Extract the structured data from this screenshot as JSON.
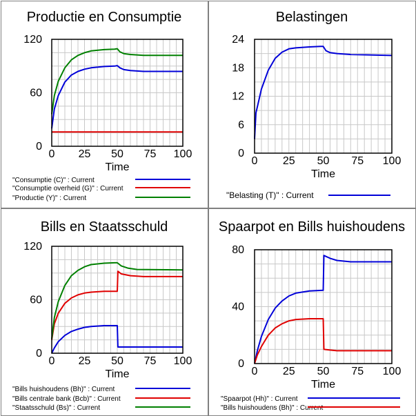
{
  "colors": {
    "blue": "#0000d8",
    "red": "#e00000",
    "green": "#008000",
    "panel_border": "#808080",
    "plot_border": "#000000",
    "grid": "#c8c8c8"
  },
  "chart_data": [
    {
      "type": "line",
      "title": "Productie en Consumptie",
      "xlabel": "Time",
      "xlim": [
        0,
        100
      ],
      "ylim": [
        0,
        120
      ],
      "xticks": [
        0,
        25,
        50,
        75,
        100
      ],
      "yticks": [
        0,
        60,
        120
      ],
      "legend_placement": "bottom",
      "series": [
        {
          "name": "\"Consumptie (C)\" : Current",
          "color": "#0000d8",
          "points": [
            [
              0,
              20
            ],
            [
              2,
              42
            ],
            [
              5,
              57
            ],
            [
              10,
              72
            ],
            [
              15,
              80
            ],
            [
              20,
              84
            ],
            [
              25,
              86.5
            ],
            [
              30,
              88
            ],
            [
              40,
              89.5
            ],
            [
              48,
              90
            ],
            [
              50,
              90.5
            ],
            [
              52,
              88
            ],
            [
              55,
              86
            ],
            [
              60,
              85
            ],
            [
              70,
              84
            ],
            [
              100,
              84
            ]
          ]
        },
        {
          "name": "\"Consumptie overheid (G)\" : Current",
          "color": "#e00000",
          "points": [
            [
              0,
              16
            ],
            [
              100,
              16
            ]
          ]
        },
        {
          "name": "\"Productie (Y)\" : Current",
          "color": "#008000",
          "points": [
            [
              0,
              36
            ],
            [
              2,
              57
            ],
            [
              5,
              73
            ],
            [
              10,
              88
            ],
            [
              15,
              97
            ],
            [
              20,
              102
            ],
            [
              25,
              105
            ],
            [
              30,
              107
            ],
            [
              40,
              108.5
            ],
            [
              48,
              109
            ],
            [
              50,
              109.5
            ],
            [
              52,
              106
            ],
            [
              55,
              104
            ],
            [
              60,
              103
            ],
            [
              70,
              102
            ],
            [
              100,
              102
            ]
          ]
        }
      ]
    },
    {
      "type": "line",
      "title": "Belastingen",
      "xlabel": "Time",
      "xlim": [
        0,
        100
      ],
      "ylim": [
        0,
        24
      ],
      "xticks": [
        0,
        25,
        50,
        75,
        100
      ],
      "yticks": [
        0,
        6,
        12,
        18,
        24
      ],
      "legend_placement": "bottom",
      "series": [
        {
          "name": "\"Belasting (T)\" : Current",
          "color": "#0000d8",
          "points": [
            [
              0,
              3
            ],
            [
              1,
              8.5
            ],
            [
              3,
              11
            ],
            [
              5,
              13.5
            ],
            [
              10,
              17.5
            ],
            [
              15,
              20
            ],
            [
              20,
              21.3
            ],
            [
              25,
              22
            ],
            [
              30,
              22.2
            ],
            [
              40,
              22.4
            ],
            [
              48,
              22.5
            ],
            [
              50,
              22.5
            ],
            [
              52,
              21.6
            ],
            [
              55,
              21.2
            ],
            [
              60,
              21
            ],
            [
              70,
              20.8
            ],
            [
              100,
              20.6
            ]
          ]
        }
      ]
    },
    {
      "type": "line",
      "title": "Bills en Staatsschuld",
      "xlabel": "Time",
      "xlim": [
        0,
        100
      ],
      "ylim": [
        0,
        120
      ],
      "xticks": [
        0,
        25,
        50,
        75,
        100
      ],
      "yticks": [
        0,
        60,
        120
      ],
      "legend_placement": "bottom",
      "series": [
        {
          "name": "\"Bills huishoudens (Bh)\" : Current",
          "color": "#0000d8",
          "points": [
            [
              0,
              0
            ],
            [
              2,
              6
            ],
            [
              5,
              13
            ],
            [
              10,
              20
            ],
            [
              15,
              24.5
            ],
            [
              20,
              27
            ],
            [
              25,
              29
            ],
            [
              30,
              30
            ],
            [
              40,
              31
            ],
            [
              50,
              31
            ],
            [
              50.5,
              7
            ],
            [
              100,
              7
            ]
          ]
        },
        {
          "name": "\"Bills centrale bank (Bcb)\" : Current",
          "color": "#e00000",
          "points": [
            [
              0,
              15
            ],
            [
              2,
              33
            ],
            [
              5,
              45
            ],
            [
              10,
              56
            ],
            [
              15,
              62
            ],
            [
              20,
              65.5
            ],
            [
              25,
              67.5
            ],
            [
              30,
              68.5
            ],
            [
              40,
              69.5
            ],
            [
              50,
              69.5
            ],
            [
              50.5,
              92
            ],
            [
              53,
              89
            ],
            [
              60,
              87
            ],
            [
              70,
              86
            ],
            [
              100,
              86
            ]
          ]
        },
        {
          "name": "\"Staatsschuld (Bs)\" : Current",
          "color": "#008000",
          "points": [
            [
              0,
              16
            ],
            [
              2,
              40
            ],
            [
              5,
              58
            ],
            [
              10,
              76
            ],
            [
              15,
              87
            ],
            [
              20,
              93
            ],
            [
              25,
              97
            ],
            [
              30,
              99.5
            ],
            [
              40,
              101
            ],
            [
              48,
              101.5
            ],
            [
              50,
              101.5
            ],
            [
              53,
              98
            ],
            [
              58,
              95.5
            ],
            [
              65,
              94
            ],
            [
              100,
              93.5
            ]
          ]
        }
      ]
    },
    {
      "type": "line",
      "title": "Spaarpot en Bills huishoudens",
      "xlabel": "Time",
      "xlim": [
        0,
        100
      ],
      "ylim": [
        0,
        80
      ],
      "xticks": [
        0,
        25,
        50,
        75,
        100
      ],
      "yticks": [
        0,
        40,
        80
      ],
      "legend_placement": "bottom",
      "series": [
        {
          "name": "\"Spaarpot (Hh)\" : Current",
          "color": "#0000d8",
          "points": [
            [
              0,
              0
            ],
            [
              2,
              9
            ],
            [
              5,
              19
            ],
            [
              10,
              31
            ],
            [
              15,
              39
            ],
            [
              20,
              44
            ],
            [
              25,
              47.5
            ],
            [
              30,
              49.5
            ],
            [
              40,
              51
            ],
            [
              50,
              51.5
            ],
            [
              50.5,
              76
            ],
            [
              55,
              74
            ],
            [
              60,
              72.5
            ],
            [
              70,
              71.5
            ],
            [
              100,
              71.5
            ]
          ]
        },
        {
          "name": "\"Bills huishoudens (Bh)\" : Current",
          "color": "#e00000",
          "points": [
            [
              0,
              0
            ],
            [
              2,
              6
            ],
            [
              5,
              12
            ],
            [
              10,
              20
            ],
            [
              15,
              25
            ],
            [
              20,
              28
            ],
            [
              25,
              30
            ],
            [
              30,
              31
            ],
            [
              40,
              31.5
            ],
            [
              50,
              31.5
            ],
            [
              50.5,
              10
            ],
            [
              55,
              9.5
            ],
            [
              60,
              9
            ],
            [
              100,
              9
            ]
          ]
        }
      ]
    }
  ]
}
